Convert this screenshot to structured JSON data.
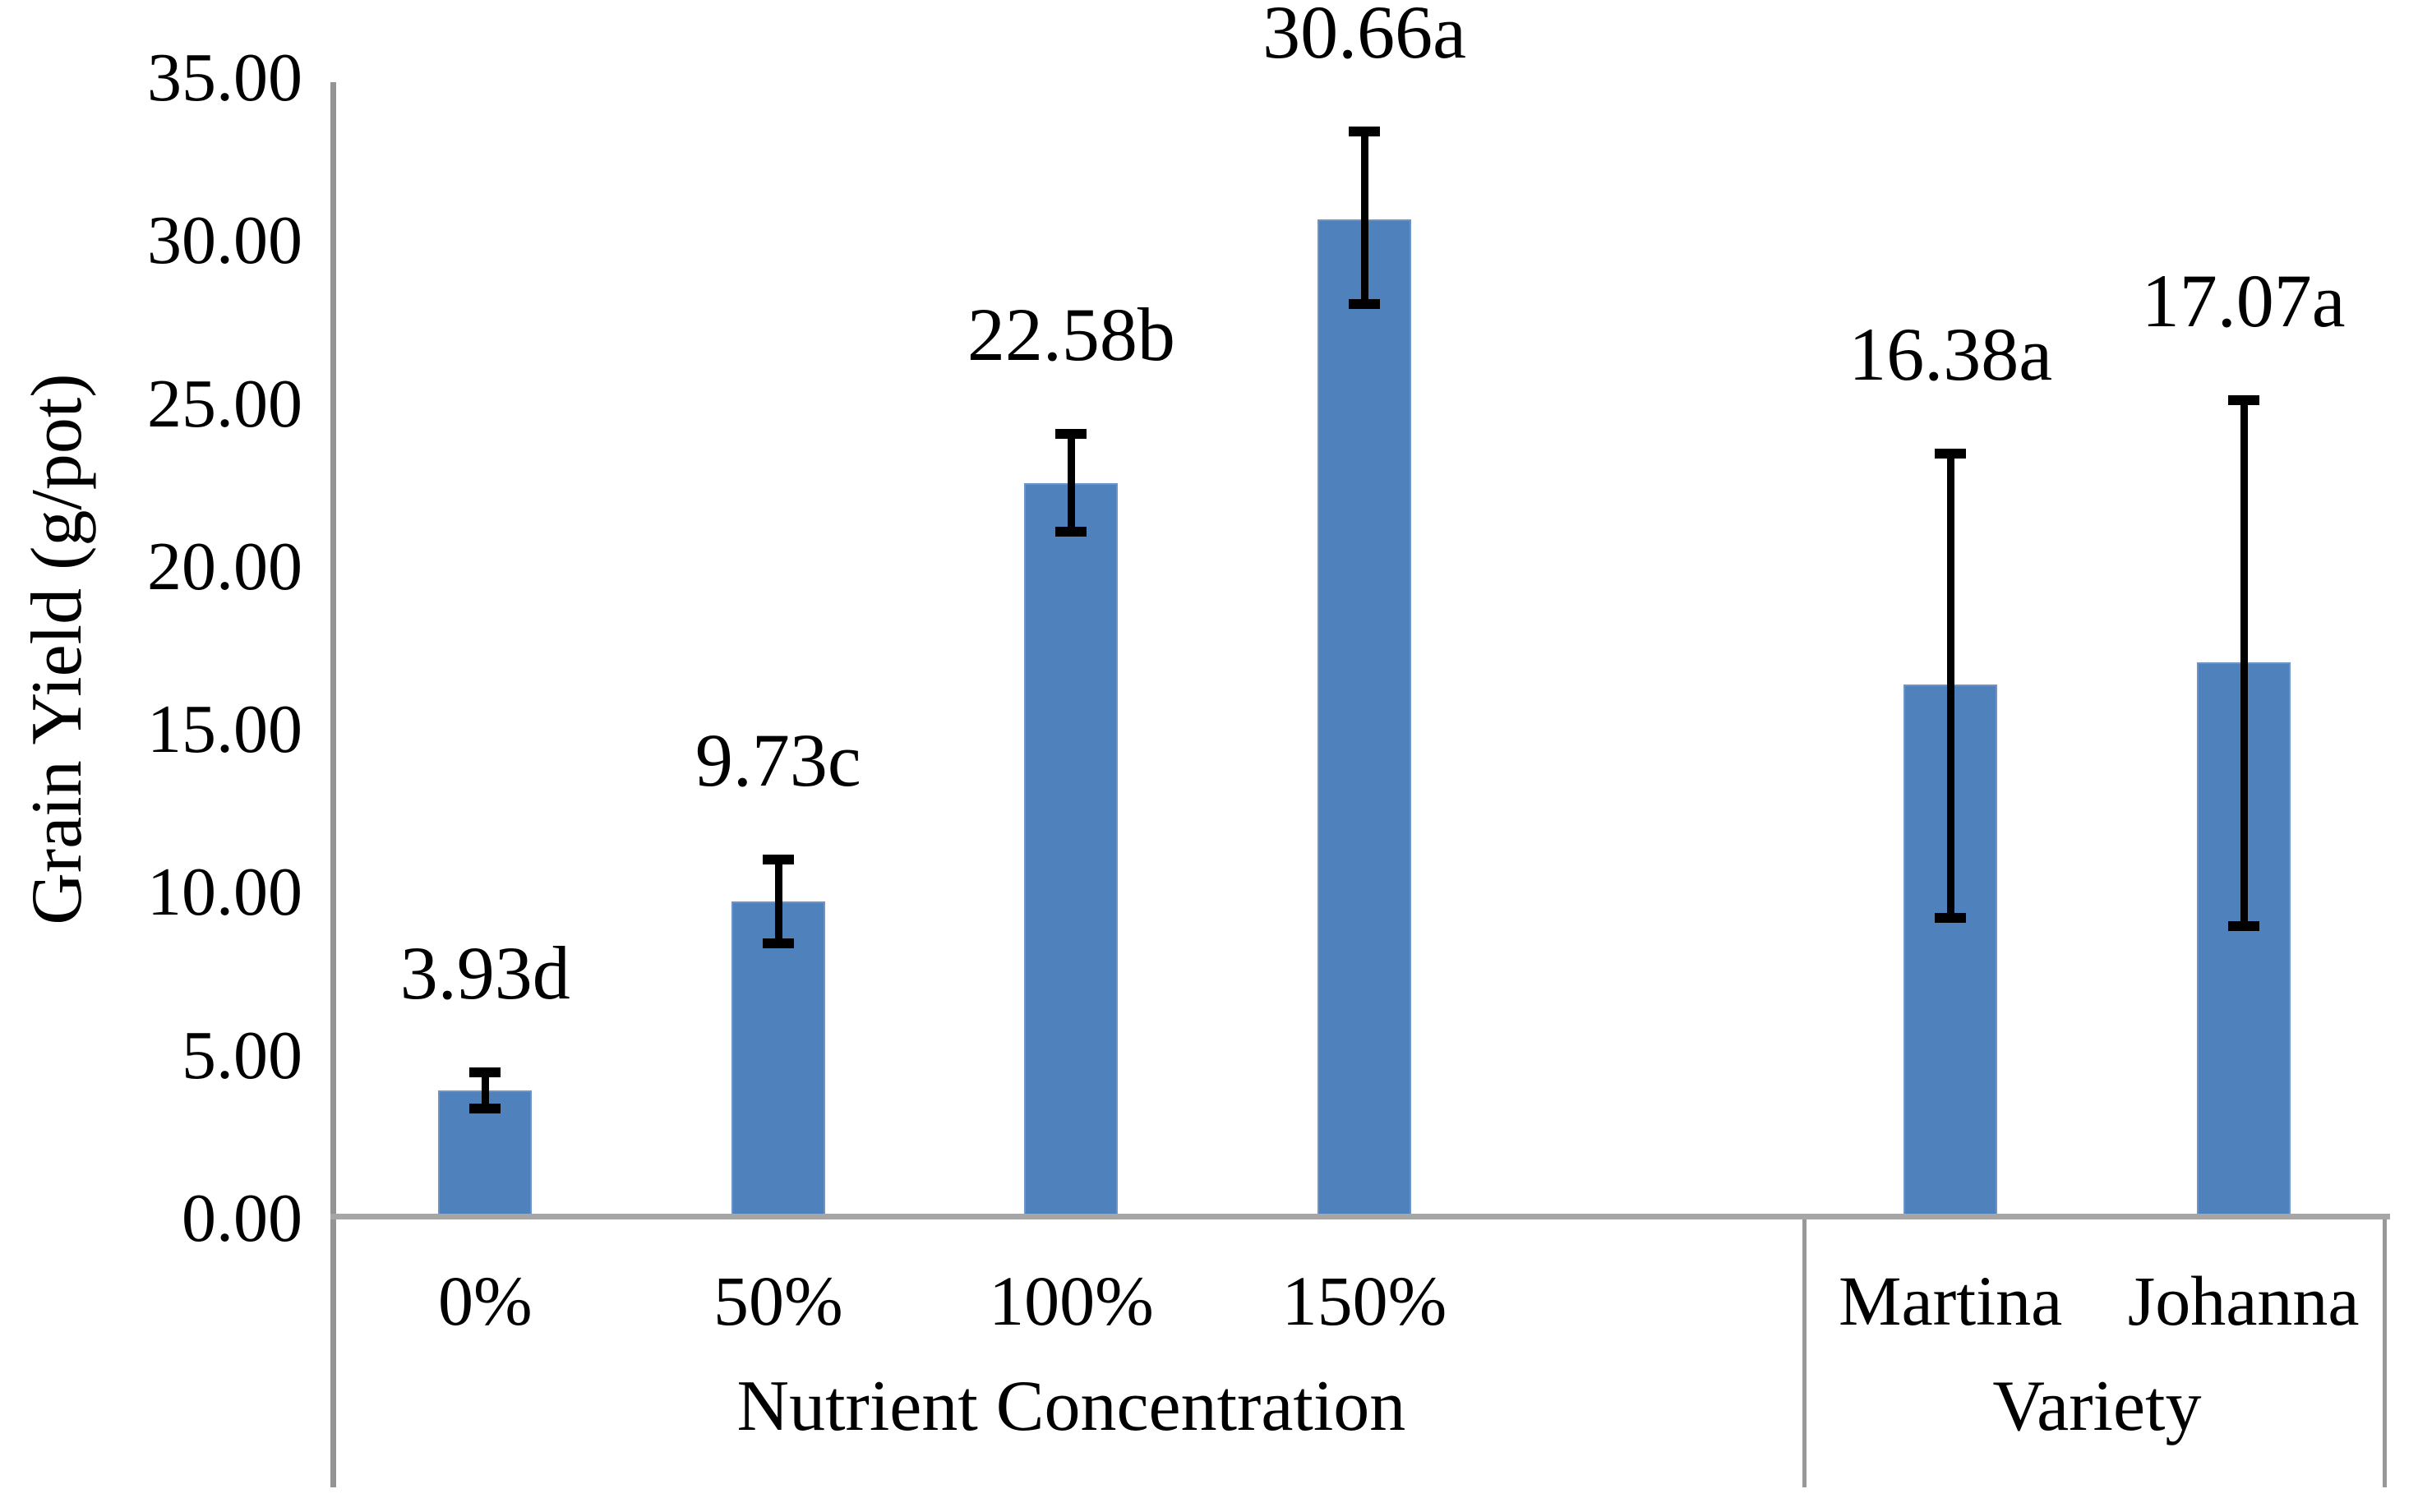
{
  "chart_data": {
    "type": "bar",
    "title": "",
    "xlabel": "",
    "ylabel": "Grain Yield (g/pot)",
    "ylim": [
      0,
      35
    ],
    "ytick_step": 5,
    "yticks": [
      {
        "value": 0,
        "label": "0.00"
      },
      {
        "value": 5,
        "label": "5.00"
      },
      {
        "value": 10,
        "label": "10.00"
      },
      {
        "value": 15,
        "label": "15.00"
      },
      {
        "value": 20,
        "label": "20.00"
      },
      {
        "value": 25,
        "label": "25.00"
      },
      {
        "value": 30,
        "label": "30.00"
      },
      {
        "value": 35,
        "label": "35.00"
      }
    ],
    "grid": false,
    "legend": "none",
    "groups": [
      {
        "label": "Nutrient Concentration",
        "categories": [
          "0%",
          "50%",
          "100%",
          "150%"
        ]
      },
      {
        "label": "Variety",
        "categories": [
          "Martina",
          "Johanna"
        ]
      }
    ],
    "bars": [
      {
        "category": "0%",
        "group": "Nutrient Concentration",
        "value": 3.93,
        "data_label": "3.93d",
        "error_plus": 0.55,
        "error_minus": 0.55
      },
      {
        "category": "50%",
        "group": "Nutrient Concentration",
        "value": 9.73,
        "data_label": "9.73c",
        "error_plus": 1.28,
        "error_minus": 1.28
      },
      {
        "category": "100%",
        "group": "Nutrient Concentration",
        "value": 22.58,
        "data_label": "22.58b",
        "error_plus": 1.5,
        "error_minus": 1.5
      },
      {
        "category": "150%",
        "group": "Nutrient Concentration",
        "value": 30.66,
        "data_label": "30.66a",
        "error_plus": 2.7,
        "error_minus": 2.6
      },
      {
        "category": "Martina",
        "group": "Variety",
        "value": 16.38,
        "data_label": "16.38a",
        "error_plus": 7.1,
        "error_minus": 7.15
      },
      {
        "category": "Johanna",
        "group": "Variety",
        "value": 17.07,
        "data_label": "17.07a",
        "error_plus": 8.05,
        "error_minus": 8.1
      }
    ],
    "colors": {
      "bar_fill": "#4f81bd",
      "bar_border": "#6b95c9",
      "error_bar": "#000000",
      "axis_line": "#949494",
      "baseline": "#a6a6a6",
      "box_line": "#989898",
      "text": "#000000",
      "background": "#ffffff"
    }
  }
}
